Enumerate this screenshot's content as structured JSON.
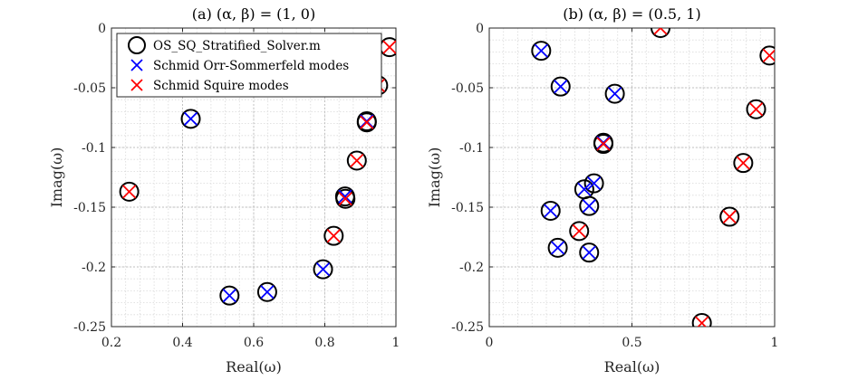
{
  "legend": {
    "entries": [
      {
        "label": "OS_SQ_Stratified_Solver.m",
        "marker": "circle",
        "color": "#000000"
      },
      {
        "label": "Schmid Orr-Sommerfeld modes",
        "marker": "x",
        "color": "#0000ff"
      },
      {
        "label": "Schmid Squire modes",
        "marker": "x",
        "color": "#ff0000"
      }
    ]
  },
  "chart_data": [
    {
      "type": "scatter",
      "title": "(a) (α, β) = (1, 0)",
      "xlabel": "Real(ω)",
      "ylabel": "Imag(ω)",
      "xlim": [
        0.2,
        1.0
      ],
      "ylim": [
        -0.25,
        0
      ],
      "xticks": [
        0.2,
        0.4,
        0.6,
        0.8,
        1.0
      ],
      "xtick_labels": [
        "0.2",
        "0.4",
        "0.6",
        "0.8",
        "1"
      ],
      "yticks": [
        0,
        -0.05,
        -0.1,
        -0.15,
        -0.2,
        -0.25
      ],
      "ytick_labels": [
        "0",
        "-0.05",
        "-0.1",
        "-0.15",
        "-0.2",
        "-0.25"
      ],
      "grid": true,
      "minor_grid": true,
      "legend_position": "top-right",
      "series": [
        {
          "name": "OS_SQ_Stratified_Solver.m",
          "marker": "circle",
          "color": "#000000",
          "points": [
            [
              0.25,
              -0.137
            ],
            [
              0.423,
              -0.076
            ],
            [
              0.532,
              -0.224
            ],
            [
              0.638,
              -0.221
            ],
            [
              0.795,
              -0.202
            ],
            [
              0.825,
              -0.174
            ],
            [
              0.857,
              -0.141
            ],
            [
              0.858,
              -0.143
            ],
            [
              0.89,
              -0.111
            ],
            [
              0.918,
              -0.078
            ],
            [
              0.918,
              -0.079
            ],
            [
              0.95,
              -0.048
            ],
            [
              0.982,
              -0.016
            ]
          ]
        },
        {
          "name": "Schmid Orr-Sommerfeld modes",
          "marker": "x",
          "color": "#0000ff",
          "points": [
            [
              0.423,
              -0.076
            ],
            [
              0.532,
              -0.224
            ],
            [
              0.638,
              -0.221
            ],
            [
              0.795,
              -0.202
            ],
            [
              0.857,
              -0.141
            ],
            [
              0.918,
              -0.078
            ]
          ]
        },
        {
          "name": "Schmid Squire modes",
          "marker": "x",
          "color": "#ff0000",
          "points": [
            [
              0.25,
              -0.137
            ],
            [
              0.825,
              -0.174
            ],
            [
              0.858,
              -0.143
            ],
            [
              0.89,
              -0.111
            ],
            [
              0.918,
              -0.079
            ],
            [
              0.95,
              -0.048
            ],
            [
              0.982,
              -0.016
            ]
          ]
        }
      ]
    },
    {
      "type": "scatter",
      "title": "(b) (α, β) = (0.5, 1)",
      "xlabel": "Real(ω)",
      "ylabel": "Imag(ω)",
      "xlim": [
        0,
        1.0
      ],
      "ylim": [
        -0.25,
        0
      ],
      "xticks": [
        0,
        0.5,
        1.0
      ],
      "xtick_labels": [
        "0",
        "0.5",
        "1"
      ],
      "yticks": [
        0,
        -0.05,
        -0.1,
        -0.15,
        -0.2,
        -0.25
      ],
      "ytick_labels": [
        "0",
        "-0.05",
        "-0.1",
        "-0.15",
        "-0.2",
        "-0.25"
      ],
      "grid": true,
      "minor_grid": true,
      "series": [
        {
          "name": "OS_SQ_Stratified_Solver.m",
          "marker": "circle",
          "color": "#000000",
          "points": [
            [
              0.182,
              -0.019
            ],
            [
              0.25,
              -0.049
            ],
            [
              0.44,
              -0.055
            ],
            [
              0.4,
              -0.096
            ],
            [
              0.4,
              -0.097
            ],
            [
              0.367,
              -0.13
            ],
            [
              0.333,
              -0.135
            ],
            [
              0.35,
              -0.149
            ],
            [
              0.215,
              -0.153
            ],
            [
              0.24,
              -0.184
            ],
            [
              0.35,
              -0.188
            ],
            [
              0.315,
              -0.17
            ],
            [
              0.6,
              0.0
            ],
            [
              0.982,
              -0.023
            ],
            [
              0.935,
              -0.068
            ],
            [
              0.89,
              -0.113
            ],
            [
              0.842,
              -0.158
            ],
            [
              0.745,
              -0.247
            ]
          ]
        },
        {
          "name": "Schmid Orr-Sommerfeld modes",
          "marker": "x",
          "color": "#0000ff",
          "points": [
            [
              0.182,
              -0.019
            ],
            [
              0.25,
              -0.049
            ],
            [
              0.44,
              -0.055
            ],
            [
              0.4,
              -0.096
            ],
            [
              0.367,
              -0.13
            ],
            [
              0.333,
              -0.135
            ],
            [
              0.35,
              -0.149
            ],
            [
              0.215,
              -0.153
            ],
            [
              0.24,
              -0.184
            ],
            [
              0.35,
              -0.188
            ]
          ]
        },
        {
          "name": "Schmid Squire modes",
          "marker": "x",
          "color": "#ff0000",
          "points": [
            [
              0.4,
              -0.097
            ],
            [
              0.315,
              -0.17
            ],
            [
              0.6,
              0.0
            ],
            [
              0.982,
              -0.023
            ],
            [
              0.935,
              -0.068
            ],
            [
              0.89,
              -0.113
            ],
            [
              0.842,
              -0.158
            ],
            [
              0.745,
              -0.247
            ]
          ]
        }
      ]
    }
  ]
}
